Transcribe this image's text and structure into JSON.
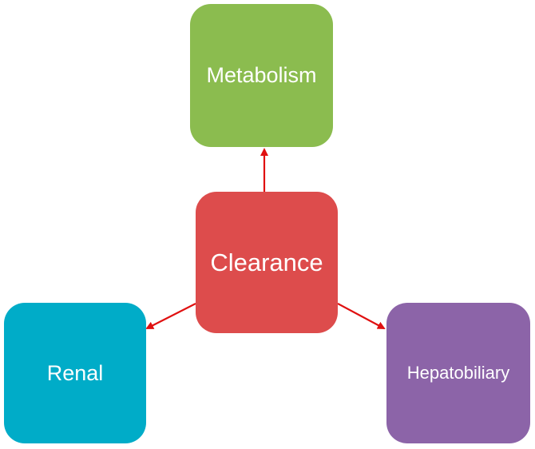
{
  "diagram": {
    "nodes": {
      "center": {
        "label": "Clearance",
        "color": "#DD4C4C"
      },
      "top": {
        "label": "Metabolism",
        "color": "#8BBC4F"
      },
      "left": {
        "label": "Renal",
        "color": "#00ACC8"
      },
      "right": {
        "label": "Hepatobiliary",
        "color": "#8C64A8"
      }
    },
    "arrows": [
      {
        "from": "Clearance",
        "to": "Metabolism"
      },
      {
        "from": "Clearance",
        "to": "Renal"
      },
      {
        "from": "Clearance",
        "to": "Hepatobiliary"
      }
    ],
    "arrow_color": "#E01010"
  }
}
